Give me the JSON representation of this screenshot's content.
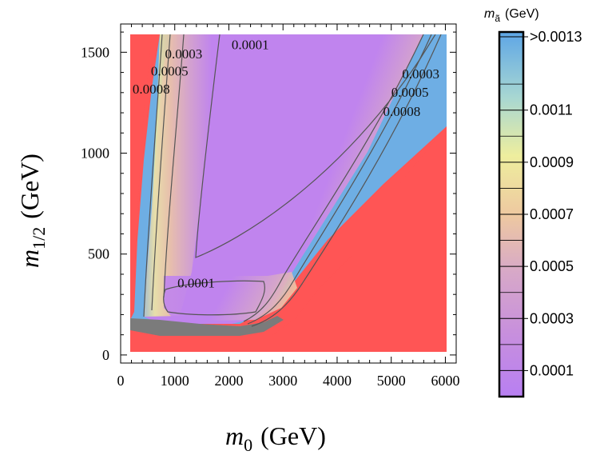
{
  "chart_data": {
    "type": "heatmap",
    "title": "",
    "xlabel": {
      "main": "m",
      "sub": "0",
      "unit": "(GeV)"
    },
    "ylabel": {
      "main": "m",
      "sub": "1/2",
      "unit": "(GeV)"
    },
    "xlim": [
      0,
      6200
    ],
    "ylim": [
      -40,
      1640
    ],
    "x_ticks": [
      0,
      1000,
      2000,
      3000,
      4000,
      5000,
      6000
    ],
    "y_ticks": [
      0,
      500,
      1000,
      1500
    ],
    "x_tick_labels": [
      "0",
      "1000",
      "2000",
      "3000",
      "4000",
      "5000",
      "6000"
    ],
    "y_tick_labels": [
      "0",
      "500",
      "1000",
      "1500"
    ],
    "colorbar": {
      "title_main": "m",
      "title_sub": "ã",
      "title_unit": "(GeV)",
      "levels": [
        0.0001,
        0.0003,
        0.0005,
        0.0007,
        0.0009,
        0.0011,
        0.0013
      ],
      "tick_labels": [
        "0.0001",
        "0.0003",
        "0.0005",
        "0.0007",
        "0.0009",
        "0.0011",
        ">0.0013"
      ],
      "colors": {
        "low": "#b87ff2",
        "mid_low": "#d7a8c8",
        "mid": "#eec9a0",
        "mid_high": "#eeee9e",
        "high_mid": "#a8d7d2",
        "high": "#6eaee4",
        "top": "#5ea6e6"
      }
    },
    "excluded_color": "#ff5555",
    "grey_color": "#7b7b7b",
    "contour_color": "#555555",
    "contour_labels": [
      {
        "text": "0.0001",
        "x": 2050,
        "y": 1515
      },
      {
        "text": "0.0003",
        "x": 820,
        "y": 1470
      },
      {
        "text": "0.0005",
        "x": 560,
        "y": 1385
      },
      {
        "text": "0.0008",
        "x": 220,
        "y": 1295
      },
      {
        "text": "0.0003",
        "x": 5200,
        "y": 1370
      },
      {
        "text": "0.0005",
        "x": 5000,
        "y": 1280
      },
      {
        "text": "0.0008",
        "x": 4850,
        "y": 1185
      },
      {
        "text": "0.0001",
        "x": 1050,
        "y": 335
      }
    ]
  }
}
